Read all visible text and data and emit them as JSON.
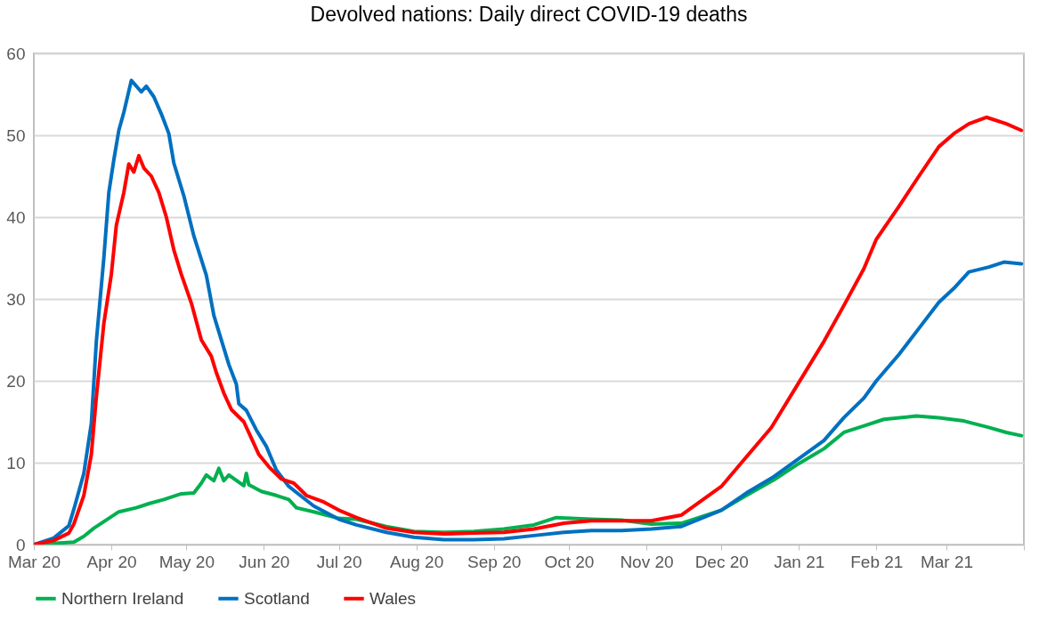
{
  "chart_data": {
    "type": "line",
    "title": "Devolved nations: Daily direct COVID-19 deaths",
    "xlim": [
      "2020-03-01",
      "2021-04-01"
    ],
    "xticks": [
      {
        "value": "2020-03-01",
        "label": "Mar 20"
      },
      {
        "value": "2020-04-01",
        "label": "Apr 20"
      },
      {
        "value": "2020-05-01",
        "label": "May 20"
      },
      {
        "value": "2020-06-01",
        "label": "Jun 20"
      },
      {
        "value": "2020-07-01",
        "label": "Jul 20"
      },
      {
        "value": "2020-08-01",
        "label": "Aug 20"
      },
      {
        "value": "2020-09-01",
        "label": "Sep 20"
      },
      {
        "value": "2020-10-01",
        "label": "Oct 20"
      },
      {
        "value": "2020-11-01",
        "label": "Nov 20"
      },
      {
        "value": "2020-12-01",
        "label": "Dec 20"
      },
      {
        "value": "2021-01-01",
        "label": "Jan 21"
      },
      {
        "value": "2021-02-01",
        "label": "Feb 21"
      },
      {
        "value": "2021-03-01",
        "label": "Mar 21"
      },
      {
        "value": "2021-04-01",
        "label": null
      }
    ],
    "ylim": [
      0,
      60
    ],
    "yticks": [
      0,
      10,
      20,
      30,
      40,
      50,
      60
    ],
    "grid": "y",
    "legend": "bottom",
    "marker": "none",
    "line_style": "solid",
    "series": [
      {
        "name": "Northern Ireland",
        "color": "#00b050",
        "x": [
          "2020-03-01",
          "2020-03-17",
          "2020-03-21",
          "2020-03-25",
          "2020-03-30",
          "2020-04-04",
          "2020-04-11",
          "2020-04-16",
          "2020-04-22",
          "2020-04-29",
          "2020-05-04",
          "2020-05-07",
          "2020-05-09",
          "2020-05-12",
          "2020-05-14",
          "2020-05-16",
          "2020-05-18",
          "2020-05-24",
          "2020-05-25",
          "2020-05-26",
          "2020-05-31",
          "2020-06-06",
          "2020-06-11",
          "2020-06-14",
          "2020-06-21",
          "2020-07-01",
          "2020-07-08",
          "2020-07-20",
          "2020-07-31",
          "2020-08-12",
          "2020-08-24",
          "2020-09-05",
          "2020-09-17",
          "2020-09-26",
          "2020-10-10",
          "2020-10-22",
          "2020-11-03",
          "2020-11-15",
          "2020-12-01",
          "2020-12-11",
          "2020-12-22",
          "2021-01-01",
          "2021-01-11",
          "2021-01-19",
          "2021-01-27",
          "2021-02-04",
          "2021-02-17",
          "2021-02-26",
          "2021-03-08",
          "2021-03-18",
          "2021-03-25",
          "2021-03-31"
        ],
        "values": [
          0,
          0.3,
          1,
          2,
          3,
          4,
          4.5,
          5,
          5.5,
          6.2,
          6.3,
          7.5,
          8.5,
          7.8,
          9.3,
          7.8,
          8.5,
          7.2,
          8.7,
          7.3,
          6.5,
          6,
          5.5,
          4.5,
          4,
          3.2,
          3.1,
          2.2,
          1.6,
          1.5,
          1.6,
          1.9,
          2.4,
          3.3,
          3.1,
          3,
          2.5,
          2.6,
          4.2,
          6,
          7.9,
          9.9,
          11.7,
          13.7,
          14.5,
          15.3,
          15.7,
          15.5,
          15.1,
          14.3,
          13.7,
          13.3
        ]
      },
      {
        "name": "Scotland",
        "color": "#0070c0",
        "x": [
          "2020-03-01",
          "2020-03-09",
          "2020-03-15",
          "2020-03-17",
          "2020-03-21",
          "2020-03-24",
          "2020-03-26",
          "2020-03-29",
          "2020-03-31",
          "2020-04-02",
          "2020-04-04",
          "2020-04-06",
          "2020-04-09",
          "2020-04-13",
          "2020-04-15",
          "2020-04-18",
          "2020-04-21",
          "2020-04-24",
          "2020-04-26",
          "2020-04-30",
          "2020-05-04",
          "2020-05-09",
          "2020-05-12",
          "2020-05-14",
          "2020-05-18",
          "2020-05-21",
          "2020-05-22",
          "2020-05-25",
          "2020-05-29",
          "2020-06-02",
          "2020-06-06",
          "2020-06-11",
          "2020-06-16",
          "2020-06-21",
          "2020-07-01",
          "2020-07-08",
          "2020-07-20",
          "2020-07-31",
          "2020-08-12",
          "2020-08-24",
          "2020-09-05",
          "2020-09-17",
          "2020-09-29",
          "2020-10-10",
          "2020-10-22",
          "2020-11-03",
          "2020-11-15",
          "2020-12-01",
          "2020-12-11",
          "2020-12-22",
          "2021-01-01",
          "2021-01-11",
          "2021-01-19",
          "2021-01-27",
          "2021-02-01",
          "2021-02-10",
          "2021-02-18",
          "2021-02-26",
          "2021-03-04",
          "2021-03-10",
          "2021-03-18",
          "2021-03-24",
          "2021-03-31"
        ],
        "values": [
          0,
          0.8,
          2.3,
          4.3,
          8.7,
          14.8,
          24.8,
          35,
          43,
          47,
          50.6,
          52.8,
          56.7,
          55.3,
          56,
          54.7,
          52.6,
          50.2,
          46.6,
          42.6,
          37.7,
          32.9,
          28,
          26,
          22,
          19.6,
          17.2,
          16.4,
          14,
          12,
          9.1,
          7.1,
          5.9,
          4.7,
          3.1,
          2.4,
          1.5,
          0.9,
          0.6,
          0.6,
          0.7,
          1.1,
          1.5,
          1.7,
          1.7,
          1.9,
          2.2,
          4.2,
          6.3,
          8.3,
          10.5,
          12.7,
          15.5,
          17.9,
          20,
          23.2,
          26.4,
          29.6,
          31.3,
          33.3,
          33.9,
          34.5,
          34.3
        ]
      },
      {
        "name": "Wales",
        "color": "#ff0000",
        "x": [
          "2020-03-01",
          "2020-03-09",
          "2020-03-15",
          "2020-03-17",
          "2020-03-21",
          "2020-03-24",
          "2020-03-26",
          "2020-03-29",
          "2020-04-01",
          "2020-04-03",
          "2020-04-06",
          "2020-04-08",
          "2020-04-10",
          "2020-04-12",
          "2020-04-14",
          "2020-04-17",
          "2020-04-20",
          "2020-04-23",
          "2020-04-26",
          "2020-04-29",
          "2020-05-03",
          "2020-05-07",
          "2020-05-11",
          "2020-05-13",
          "2020-05-16",
          "2020-05-19",
          "2020-05-24",
          "2020-05-27",
          "2020-05-30",
          "2020-06-03",
          "2020-06-08",
          "2020-06-13",
          "2020-06-18",
          "2020-06-25",
          "2020-07-01",
          "2020-07-08",
          "2020-07-20",
          "2020-07-31",
          "2020-08-12",
          "2020-08-24",
          "2020-09-05",
          "2020-09-17",
          "2020-09-29",
          "2020-10-10",
          "2020-10-22",
          "2020-11-03",
          "2020-11-15",
          "2020-12-01",
          "2020-12-11",
          "2020-12-21",
          "2021-01-01",
          "2021-01-11",
          "2021-01-19",
          "2021-01-27",
          "2021-02-01",
          "2021-02-10",
          "2021-02-18",
          "2021-02-26",
          "2021-03-04",
          "2021-03-10",
          "2021-03-17",
          "2021-03-25",
          "2021-03-31"
        ],
        "values": [
          0,
          0.5,
          1.4,
          2.5,
          6,
          11,
          18,
          27,
          33,
          39,
          43,
          46.5,
          45.5,
          47.5,
          46,
          45,
          43,
          40,
          36,
          33,
          29.5,
          25,
          23,
          21,
          18.5,
          16.5,
          15,
          13,
          11,
          9.5,
          8,
          7.5,
          6,
          5.2,
          4.2,
          3.3,
          2,
          1.5,
          1.3,
          1.4,
          1.5,
          1.9,
          2.6,
          2.9,
          2.9,
          2.9,
          3.6,
          7.1,
          10.7,
          14.3,
          19.8,
          24.8,
          29.2,
          33.7,
          37.3,
          41.3,
          45,
          48.6,
          50.2,
          51.4,
          52.2,
          51.4,
          50.6
        ]
      }
    ]
  }
}
